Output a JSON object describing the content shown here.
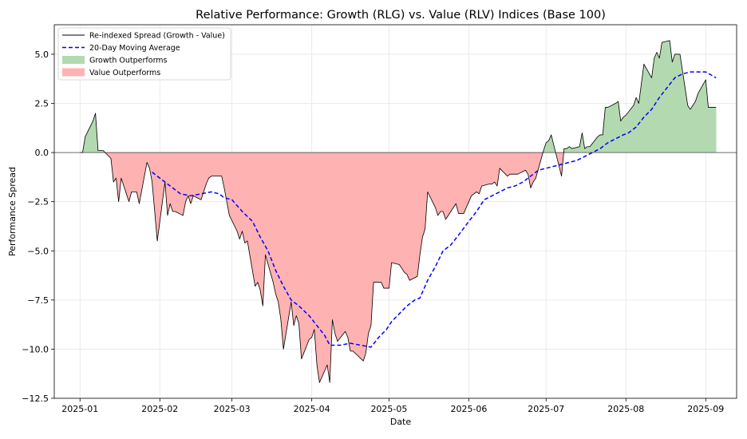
{
  "chart_data": {
    "type": "area",
    "title": "Relative Performance: Growth (RLG) vs. Value (RLV) Indices (Base 100)",
    "xlabel": "Date",
    "ylabel": "Performance Spread",
    "xlim": [
      "2024-12-22",
      "2025-09-13"
    ],
    "ylim": [
      -12.5,
      6.5
    ],
    "grid": true,
    "legend_position": "top-left",
    "x_ticks": [
      "2025-01-01",
      "2025-02-01",
      "2025-03-01",
      "2025-04-01",
      "2025-05-01",
      "2025-06-01",
      "2025-07-01",
      "2025-08-01",
      "2025-09-01"
    ],
    "x_tick_labels": [
      "2025-01",
      "2025-02",
      "2025-03",
      "2025-04",
      "2025-05",
      "2025-06",
      "2025-07",
      "2025-08",
      "2025-09"
    ],
    "y_ticks": [
      -12.5,
      -10.0,
      -7.5,
      -5.0,
      -2.5,
      0.0,
      2.5,
      5.0
    ],
    "y_tick_labels": [
      "−12.5",
      "−10.0",
      "−7.5",
      "−5.0",
      "−2.5",
      "0.0",
      "2.5",
      "5.0"
    ],
    "legend": [
      {
        "label": "Re-indexed Spread (Growth - Value)",
        "style": "line",
        "color": "#000000"
      },
      {
        "label": "20-Day Moving Average",
        "style": "dashed",
        "color": "#0000ff"
      },
      {
        "label": "Growth Outperforms",
        "style": "patch",
        "color": "#b3d9b0"
      },
      {
        "label": "Value Outperforms",
        "style": "patch",
        "color": "#ffb2b2"
      }
    ],
    "colors": {
      "spread": "#000000",
      "moving_average": "#0000ff",
      "growth_fill": "#b3d9b0",
      "value_fill": "#ffb2b2",
      "zero_line": "#404040",
      "grid": "#e6e6e6"
    },
    "series": [
      {
        "name": "Re-indexed Spread (Growth - Value)",
        "points": [
          [
            "2025-01-01",
            0.0
          ],
          [
            "2025-01-02",
            0.0
          ],
          [
            "2025-01-03",
            0.8
          ],
          [
            "2025-01-06",
            1.6
          ],
          [
            "2025-01-07",
            2.0
          ],
          [
            "2025-01-08",
            0.1
          ],
          [
            "2025-01-09",
            0.1
          ],
          [
            "2025-01-10",
            0.1
          ],
          [
            "2025-01-13",
            -0.3
          ],
          [
            "2025-01-14",
            -1.5
          ],
          [
            "2025-01-15",
            -1.3
          ],
          [
            "2025-01-16",
            -2.5
          ],
          [
            "2025-01-17",
            -1.3
          ],
          [
            "2025-01-20",
            -2.5
          ],
          [
            "2025-01-21",
            -2.0
          ],
          [
            "2025-01-22",
            -2.0
          ],
          [
            "2025-01-23",
            -2.0
          ],
          [
            "2025-01-24",
            -2.6
          ],
          [
            "2025-01-27",
            -0.5
          ],
          [
            "2025-01-28",
            -0.8
          ],
          [
            "2025-01-29",
            -1.5
          ],
          [
            "2025-01-30",
            -3.0
          ],
          [
            "2025-01-31",
            -4.5
          ],
          [
            "2025-02-03",
            -1.5
          ],
          [
            "2025-02-04",
            -3.2
          ],
          [
            "2025-02-05",
            -2.6
          ],
          [
            "2025-02-06",
            -3.0
          ],
          [
            "2025-02-07",
            -3.0
          ],
          [
            "2025-02-10",
            -3.2
          ],
          [
            "2025-02-11",
            -2.5
          ],
          [
            "2025-02-12",
            -2.2
          ],
          [
            "2025-02-13",
            -2.6
          ],
          [
            "2025-02-14",
            -2.2
          ],
          [
            "2025-02-17",
            -2.4
          ],
          [
            "2025-02-18",
            -2.0
          ],
          [
            "2025-02-19",
            -1.6
          ],
          [
            "2025-02-20",
            -1.3
          ],
          [
            "2025-02-21",
            -1.2
          ],
          [
            "2025-02-24",
            -1.2
          ],
          [
            "2025-02-25",
            -1.2
          ],
          [
            "2025-02-26",
            -1.8
          ],
          [
            "2025-02-27",
            -2.5
          ],
          [
            "2025-02-28",
            -3.2
          ],
          [
            "2025-03-03",
            -4.0
          ],
          [
            "2025-03-04",
            -4.4
          ],
          [
            "2025-03-05",
            -4.0
          ],
          [
            "2025-03-06",
            -4.6
          ],
          [
            "2025-03-07",
            -4.5
          ],
          [
            "2025-03-10",
            -6.8
          ],
          [
            "2025-03-11",
            -6.6
          ],
          [
            "2025-03-12",
            -7.0
          ],
          [
            "2025-03-13",
            -7.8
          ],
          [
            "2025-03-14",
            -5.2
          ],
          [
            "2025-03-17",
            -6.6
          ],
          [
            "2025-03-18",
            -7.2
          ],
          [
            "2025-03-19",
            -7.6
          ],
          [
            "2025-03-20",
            -8.5
          ],
          [
            "2025-03-21",
            -10.0
          ],
          [
            "2025-03-24",
            -7.6
          ],
          [
            "2025-03-25",
            -8.8
          ],
          [
            "2025-03-26",
            -8.3
          ],
          [
            "2025-03-27",
            -8.7
          ],
          [
            "2025-03-28",
            -10.5
          ],
          [
            "2025-03-31",
            -9.5
          ],
          [
            "2025-04-01",
            -9.4
          ],
          [
            "2025-04-02",
            -9.0
          ],
          [
            "2025-04-03",
            -10.8
          ],
          [
            "2025-04-04",
            -11.7
          ],
          [
            "2025-04-07",
            -10.8
          ],
          [
            "2025-04-08",
            -11.7
          ],
          [
            "2025-04-09",
            -8.5
          ],
          [
            "2025-04-10",
            -9.2
          ],
          [
            "2025-04-11",
            -9.6
          ],
          [
            "2025-04-14",
            -9.1
          ],
          [
            "2025-04-15",
            -9.4
          ],
          [
            "2025-04-16",
            -10.1
          ],
          [
            "2025-04-17",
            -10.1
          ],
          [
            "2025-04-21",
            -10.6
          ],
          [
            "2025-04-22",
            -10.2
          ],
          [
            "2025-04-23",
            -9.2
          ],
          [
            "2025-04-24",
            -8.8
          ],
          [
            "2025-04-25",
            -6.6
          ],
          [
            "2025-04-28",
            -6.6
          ],
          [
            "2025-04-29",
            -6.9
          ],
          [
            "2025-04-30",
            -6.9
          ],
          [
            "2025-05-01",
            -6.9
          ],
          [
            "2025-05-02",
            -5.6
          ],
          [
            "2025-05-05",
            -5.7
          ],
          [
            "2025-05-06",
            -5.9
          ],
          [
            "2025-05-07",
            -6.1
          ],
          [
            "2025-05-08",
            -6.2
          ],
          [
            "2025-05-09",
            -6.5
          ],
          [
            "2025-05-12",
            -6.3
          ],
          [
            "2025-05-13",
            -5.2
          ],
          [
            "2025-05-14",
            -4.3
          ],
          [
            "2025-05-15",
            -3.9
          ],
          [
            "2025-05-16",
            -2.0
          ],
          [
            "2025-05-19",
            -2.8
          ],
          [
            "2025-05-20",
            -3.2
          ],
          [
            "2025-05-21",
            -3.0
          ],
          [
            "2025-05-22",
            -3.0
          ],
          [
            "2025-05-23",
            -3.4
          ],
          [
            "2025-05-27",
            -2.6
          ],
          [
            "2025-05-28",
            -3.1
          ],
          [
            "2025-05-29",
            -3.1
          ],
          [
            "2025-05-30",
            -3.1
          ],
          [
            "2025-06-02",
            -2.2
          ],
          [
            "2025-06-03",
            -2.1
          ],
          [
            "2025-06-04",
            -2.0
          ],
          [
            "2025-06-05",
            -2.1
          ],
          [
            "2025-06-06",
            -1.7
          ],
          [
            "2025-06-09",
            -1.6
          ],
          [
            "2025-06-10",
            -1.6
          ],
          [
            "2025-06-11",
            -1.5
          ],
          [
            "2025-06-12",
            -1.7
          ],
          [
            "2025-06-13",
            -0.8
          ],
          [
            "2025-06-16",
            -1.2
          ],
          [
            "2025-06-17",
            -1.1
          ],
          [
            "2025-06-18",
            -1.1
          ],
          [
            "2025-06-19",
            -1.1
          ],
          [
            "2025-06-20",
            -1.1
          ],
          [
            "2025-06-23",
            -0.9
          ],
          [
            "2025-06-24",
            -1.1
          ],
          [
            "2025-06-25",
            -1.8
          ],
          [
            "2025-06-26",
            -1.5
          ],
          [
            "2025-06-27",
            -1.3
          ],
          [
            "2025-06-30",
            0.1
          ],
          [
            "2025-07-01",
            0.5
          ],
          [
            "2025-07-02",
            0.6
          ],
          [
            "2025-07-03",
            0.9
          ],
          [
            "2025-07-07",
            -1.2
          ],
          [
            "2025-07-08",
            0.2
          ],
          [
            "2025-07-09",
            0.2
          ],
          [
            "2025-07-10",
            0.3
          ],
          [
            "2025-07-11",
            0.2
          ],
          [
            "2025-07-14",
            0.3
          ],
          [
            "2025-07-15",
            1.0
          ],
          [
            "2025-07-16",
            0.2
          ],
          [
            "2025-07-17",
            0.3
          ],
          [
            "2025-07-18",
            0.3
          ],
          [
            "2025-07-21",
            0.8
          ],
          [
            "2025-07-22",
            0.9
          ],
          [
            "2025-07-23",
            0.9
          ],
          [
            "2025-07-24",
            2.3
          ],
          [
            "2025-07-25",
            2.3
          ],
          [
            "2025-07-28",
            2.5
          ],
          [
            "2025-07-29",
            2.6
          ],
          [
            "2025-07-30",
            1.6
          ],
          [
            "2025-07-31",
            1.8
          ],
          [
            "2025-08-01",
            1.9
          ],
          [
            "2025-08-04",
            2.4
          ],
          [
            "2025-08-05",
            2.8
          ],
          [
            "2025-08-06",
            2.5
          ],
          [
            "2025-08-07",
            3.5
          ],
          [
            "2025-08-08",
            4.5
          ],
          [
            "2025-08-11",
            3.8
          ],
          [
            "2025-08-12",
            4.8
          ],
          [
            "2025-08-13",
            5.1
          ],
          [
            "2025-08-14",
            4.8
          ],
          [
            "2025-08-15",
            5.6
          ],
          [
            "2025-08-18",
            5.7
          ],
          [
            "2025-08-19",
            4.6
          ],
          [
            "2025-08-20",
            5.0
          ],
          [
            "2025-08-21",
            5.0
          ],
          [
            "2025-08-22",
            5.0
          ],
          [
            "2025-08-25",
            2.4
          ],
          [
            "2025-08-26",
            2.2
          ],
          [
            "2025-08-27",
            2.4
          ],
          [
            "2025-08-28",
            2.6
          ],
          [
            "2025-08-29",
            3.0
          ],
          [
            "2025-09-01",
            3.7
          ],
          [
            "2025-09-02",
            2.3
          ],
          [
            "2025-09-03",
            2.3
          ],
          [
            "2025-09-04",
            2.3
          ],
          [
            "2025-09-05",
            2.3
          ]
        ]
      },
      {
        "name": "20-Day Moving Average",
        "points": [
          [
            "2025-01-29",
            -1.0
          ],
          [
            "2025-02-01",
            -1.3
          ],
          [
            "2025-02-05",
            -1.7
          ],
          [
            "2025-02-09",
            -2.1
          ],
          [
            "2025-02-13",
            -2.2
          ],
          [
            "2025-02-17",
            -2.1
          ],
          [
            "2025-02-21",
            -2.0
          ],
          [
            "2025-02-24",
            -2.1
          ],
          [
            "2025-02-26",
            -2.3
          ],
          [
            "2025-03-01",
            -2.4
          ],
          [
            "2025-03-05",
            -3.0
          ],
          [
            "2025-03-09",
            -3.5
          ],
          [
            "2025-03-12",
            -4.3
          ],
          [
            "2025-03-15",
            -5.0
          ],
          [
            "2025-03-18",
            -6.0
          ],
          [
            "2025-03-21",
            -6.8
          ],
          [
            "2025-03-24",
            -7.5
          ],
          [
            "2025-03-27",
            -7.8
          ],
          [
            "2025-03-31",
            -8.3
          ],
          [
            "2025-04-03",
            -8.8
          ],
          [
            "2025-04-06",
            -9.3
          ],
          [
            "2025-04-08",
            -9.8
          ],
          [
            "2025-04-12",
            -9.8
          ],
          [
            "2025-04-16",
            -9.7
          ],
          [
            "2025-04-20",
            -9.8
          ],
          [
            "2025-04-24",
            -9.9
          ],
          [
            "2025-04-27",
            -9.4
          ],
          [
            "2025-04-30",
            -9.0
          ],
          [
            "2025-05-02",
            -8.6
          ],
          [
            "2025-05-05",
            -8.2
          ],
          [
            "2025-05-08",
            -7.8
          ],
          [
            "2025-05-11",
            -7.5
          ],
          [
            "2025-05-13",
            -7.4
          ],
          [
            "2025-05-16",
            -6.5
          ],
          [
            "2025-05-19",
            -5.8
          ],
          [
            "2025-05-22",
            -5.0
          ],
          [
            "2025-05-25",
            -4.7
          ],
          [
            "2025-05-28",
            -4.2
          ],
          [
            "2025-06-01",
            -3.5
          ],
          [
            "2025-06-04",
            -3.0
          ],
          [
            "2025-06-07",
            -2.4
          ],
          [
            "2025-06-10",
            -2.2
          ],
          [
            "2025-06-13",
            -2.0
          ],
          [
            "2025-06-16",
            -1.8
          ],
          [
            "2025-06-19",
            -1.7
          ],
          [
            "2025-06-22",
            -1.5
          ],
          [
            "2025-06-25",
            -1.2
          ],
          [
            "2025-06-28",
            -0.9
          ],
          [
            "2025-07-01",
            -0.8
          ],
          [
            "2025-07-04",
            -0.7
          ],
          [
            "2025-07-07",
            -0.6
          ],
          [
            "2025-07-10",
            -0.5
          ],
          [
            "2025-07-13",
            -0.4
          ],
          [
            "2025-07-16",
            -0.2
          ],
          [
            "2025-07-19",
            0.0
          ],
          [
            "2025-07-22",
            0.2
          ],
          [
            "2025-07-25",
            0.5
          ],
          [
            "2025-07-28",
            0.7
          ],
          [
            "2025-07-31",
            0.9
          ],
          [
            "2025-08-02",
            1.0
          ],
          [
            "2025-08-05",
            1.3
          ],
          [
            "2025-08-08",
            1.8
          ],
          [
            "2025-08-11",
            2.2
          ],
          [
            "2025-08-14",
            2.8
          ],
          [
            "2025-08-17",
            3.3
          ],
          [
            "2025-08-20",
            3.8
          ],
          [
            "2025-08-23",
            4.0
          ],
          [
            "2025-08-26",
            4.1
          ],
          [
            "2025-08-29",
            4.1
          ],
          [
            "2025-09-01",
            4.1
          ],
          [
            "2025-09-05",
            3.8
          ]
        ]
      }
    ]
  }
}
